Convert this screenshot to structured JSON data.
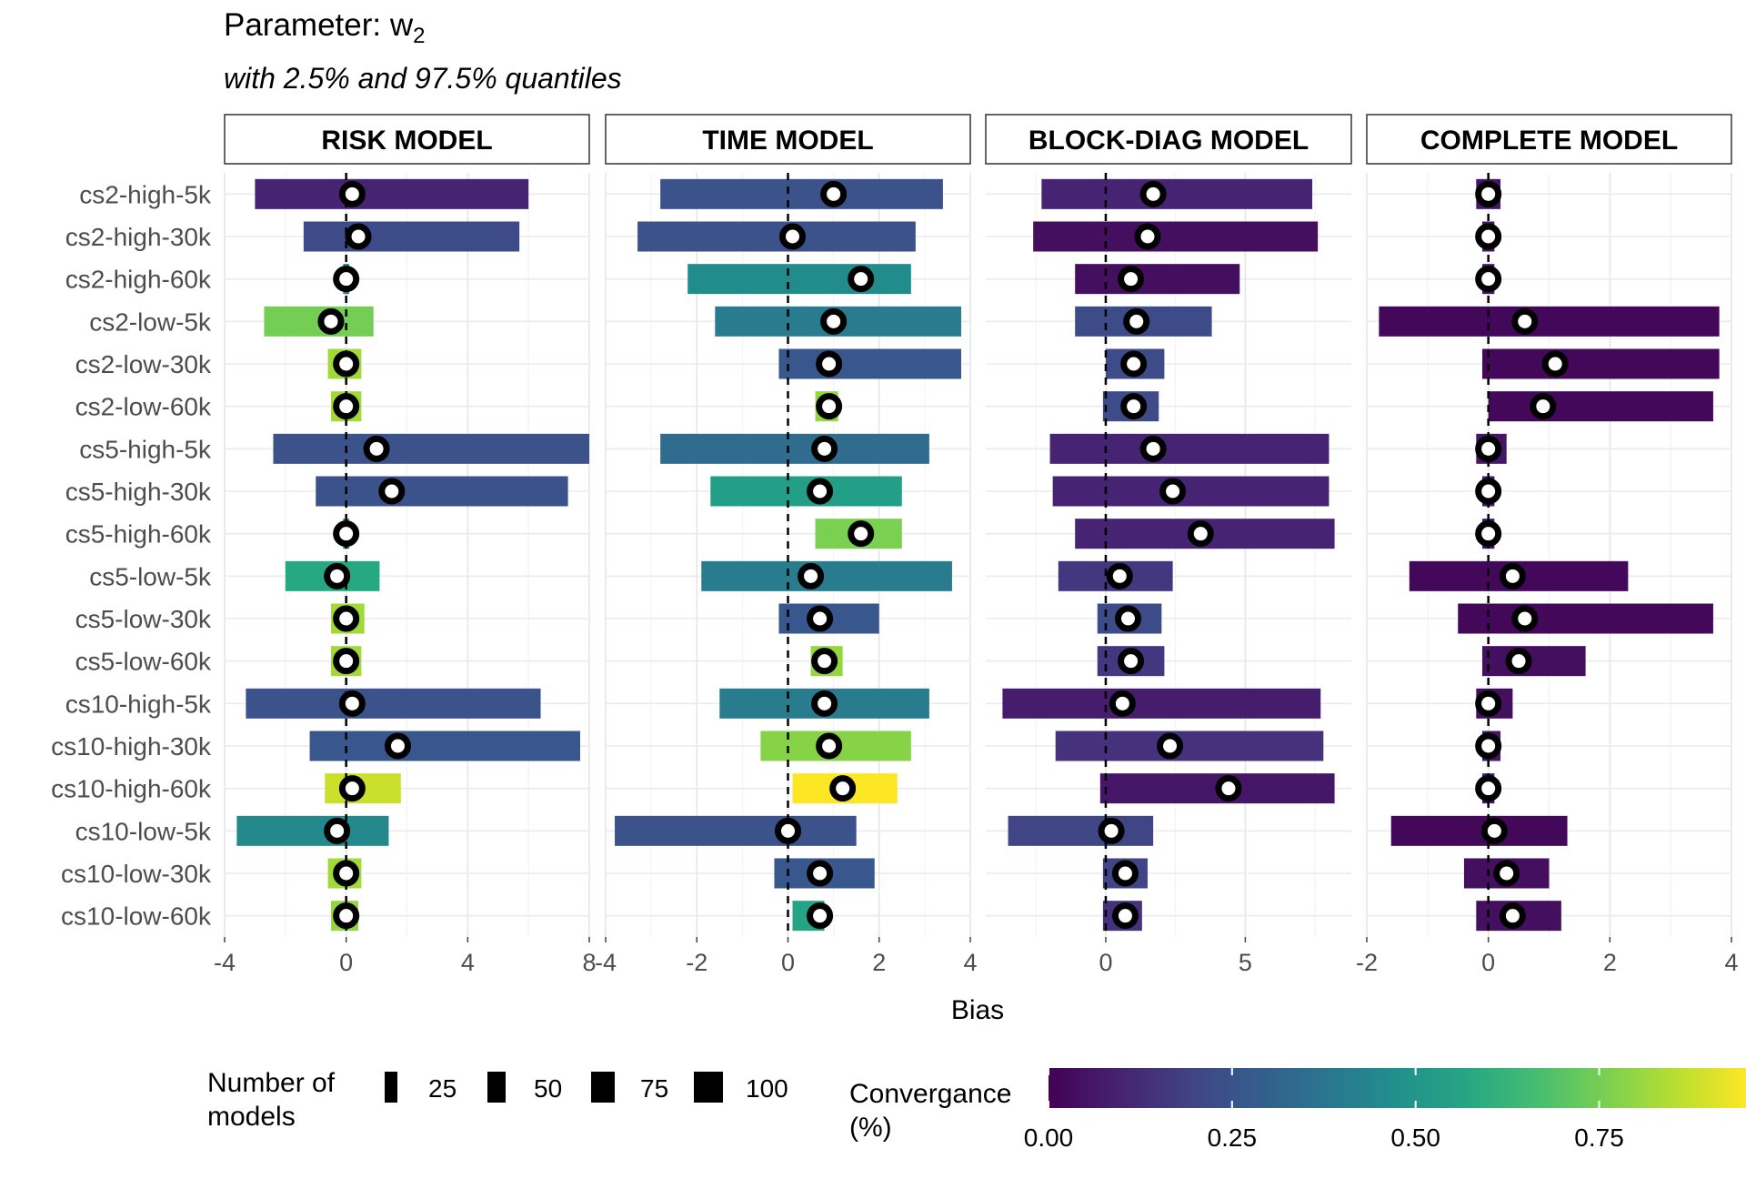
{
  "title": {
    "text": "Parameter: w",
    "subscript": "2"
  },
  "subtitle": "with 2.5% and 97.5% quantiles",
  "chart_data": {
    "type": "bar",
    "orientation": "horizontal range bars with point estimates, faceted",
    "x_label": "Bias",
    "categories": [
      "cs2-high-5k",
      "cs2-high-30k",
      "cs2-high-60k",
      "cs2-low-5k",
      "cs2-low-30k",
      "cs2-low-60k",
      "cs5-high-5k",
      "cs5-high-30k",
      "cs5-high-60k",
      "cs5-low-5k",
      "cs5-low-30k",
      "cs5-low-60k",
      "cs10-high-5k",
      "cs10-high-30k",
      "cs10-high-60k",
      "cs10-low-5k",
      "cs10-low-30k",
      "cs10-low-60k"
    ],
    "reference_line": {
      "x": 0,
      "style": "dashed"
    },
    "grid": true,
    "facets": [
      {
        "name": "RISK MODEL",
        "xlim": [
          -4,
          8
        ],
        "xticks": [
          -4,
          0,
          4,
          8
        ],
        "rows": [
          {
            "lo": -3.0,
            "hi": 6.0,
            "est": 0.2,
            "conv": 0.1
          },
          {
            "lo": -1.4,
            "hi": 5.7,
            "est": 0.4,
            "conv": 0.22
          },
          {
            "lo": -0.1,
            "hi": 0.1,
            "est": 0.0,
            "conv": 0.4
          },
          {
            "lo": -2.7,
            "hi": 0.9,
            "est": -0.5,
            "conv": 0.75
          },
          {
            "lo": -0.6,
            "hi": 0.5,
            "est": 0.0,
            "conv": 0.82
          },
          {
            "lo": -0.5,
            "hi": 0.5,
            "est": 0.0,
            "conv": 0.82
          },
          {
            "lo": -2.4,
            "hi": 8.0,
            "est": 1.0,
            "conv": 0.24
          },
          {
            "lo": -1.0,
            "hi": 7.3,
            "est": 1.5,
            "conv": 0.24
          },
          {
            "lo": -0.1,
            "hi": 0.1,
            "est": 0.0,
            "conv": 0.4
          },
          {
            "lo": -2.0,
            "hi": 1.1,
            "est": -0.3,
            "conv": 0.58
          },
          {
            "lo": -0.5,
            "hi": 0.6,
            "est": 0.0,
            "conv": 0.82
          },
          {
            "lo": -0.5,
            "hi": 0.5,
            "est": 0.0,
            "conv": 0.82
          },
          {
            "lo": -3.3,
            "hi": 6.4,
            "est": 0.2,
            "conv": 0.24
          },
          {
            "lo": -1.2,
            "hi": 7.7,
            "est": 1.7,
            "conv": 0.26
          },
          {
            "lo": -0.7,
            "hi": 1.8,
            "est": 0.2,
            "conv": 0.88
          },
          {
            "lo": -3.6,
            "hi": 1.4,
            "est": -0.3,
            "conv": 0.45
          },
          {
            "lo": -0.6,
            "hi": 0.5,
            "est": 0.0,
            "conv": 0.82
          },
          {
            "lo": -0.5,
            "hi": 0.4,
            "est": 0.0,
            "conv": 0.8
          }
        ]
      },
      {
        "name": "TIME MODEL",
        "xlim": [
          -4,
          4
        ],
        "xticks": [
          -4,
          -2,
          0,
          2,
          4
        ],
        "rows": [
          {
            "lo": -2.8,
            "hi": 3.4,
            "est": 1.0,
            "conv": 0.24
          },
          {
            "lo": -3.3,
            "hi": 2.8,
            "est": 0.1,
            "conv": 0.24
          },
          {
            "lo": -2.2,
            "hi": 2.7,
            "est": 1.6,
            "conv": 0.46
          },
          {
            "lo": -1.6,
            "hi": 3.8,
            "est": 1.0,
            "conv": 0.4
          },
          {
            "lo": -0.2,
            "hi": 3.8,
            "est": 0.9,
            "conv": 0.26
          },
          {
            "lo": 0.6,
            "hi": 1.1,
            "est": 0.9,
            "conv": 0.8
          },
          {
            "lo": -2.8,
            "hi": 3.1,
            "est": 0.8,
            "conv": 0.34
          },
          {
            "lo": -1.7,
            "hi": 2.5,
            "est": 0.7,
            "conv": 0.54
          },
          {
            "lo": 0.6,
            "hi": 2.5,
            "est": 1.6,
            "conv": 0.76
          },
          {
            "lo": -1.9,
            "hi": 3.6,
            "est": 0.5,
            "conv": 0.4
          },
          {
            "lo": -0.2,
            "hi": 2.0,
            "est": 0.7,
            "conv": 0.26
          },
          {
            "lo": 0.5,
            "hi": 1.2,
            "est": 0.8,
            "conv": 0.8
          },
          {
            "lo": -1.5,
            "hi": 3.1,
            "est": 0.8,
            "conv": 0.4
          },
          {
            "lo": -0.6,
            "hi": 2.7,
            "est": 0.9,
            "conv": 0.78
          },
          {
            "lo": 0.1,
            "hi": 2.4,
            "est": 1.2,
            "conv": 0.95
          },
          {
            "lo": -3.8,
            "hi": 1.5,
            "est": 0.0,
            "conv": 0.24
          },
          {
            "lo": -0.3,
            "hi": 1.9,
            "est": 0.7,
            "conv": 0.26
          },
          {
            "lo": 0.1,
            "hi": 0.8,
            "est": 0.7,
            "conv": 0.56
          }
        ]
      },
      {
        "name": "BLOCK-DIAG MODEL",
        "xlim": [
          -4.3,
          8.8
        ],
        "xticks": [
          0,
          5
        ],
        "rows": [
          {
            "lo": -2.3,
            "hi": 7.4,
            "est": 1.7,
            "conv": 0.1
          },
          {
            "lo": -2.6,
            "hi": 7.6,
            "est": 1.5,
            "conv": 0.04
          },
          {
            "lo": -1.1,
            "hi": 4.8,
            "est": 0.9,
            "conv": 0.04
          },
          {
            "lo": -1.1,
            "hi": 3.8,
            "est": 1.1,
            "conv": 0.22
          },
          {
            "lo": 0.0,
            "hi": 2.1,
            "est": 1.0,
            "conv": 0.22
          },
          {
            "lo": -0.1,
            "hi": 1.9,
            "est": 1.0,
            "conv": 0.22
          },
          {
            "lo": -2.0,
            "hi": 8.0,
            "est": 1.7,
            "conv": 0.1
          },
          {
            "lo": -1.9,
            "hi": 8.0,
            "est": 2.4,
            "conv": 0.1
          },
          {
            "lo": -1.1,
            "hi": 8.2,
            "est": 3.4,
            "conv": 0.1
          },
          {
            "lo": -1.7,
            "hi": 2.4,
            "est": 0.5,
            "conv": 0.16
          },
          {
            "lo": -0.3,
            "hi": 2.0,
            "est": 0.8,
            "conv": 0.22
          },
          {
            "lo": -0.3,
            "hi": 2.1,
            "est": 0.9,
            "conv": 0.16
          },
          {
            "lo": -3.7,
            "hi": 7.7,
            "est": 0.6,
            "conv": 0.08
          },
          {
            "lo": -1.8,
            "hi": 7.8,
            "est": 2.3,
            "conv": 0.14
          },
          {
            "lo": -0.2,
            "hi": 8.2,
            "est": 4.4,
            "conv": 0.06
          },
          {
            "lo": -3.5,
            "hi": 1.7,
            "est": 0.2,
            "conv": 0.2
          },
          {
            "lo": -0.1,
            "hi": 1.5,
            "est": 0.7,
            "conv": 0.2
          },
          {
            "lo": -0.1,
            "hi": 1.3,
            "est": 0.7,
            "conv": 0.14
          }
        ]
      },
      {
        "name": "COMPLETE MODEL",
        "xlim": [
          -2,
          4
        ],
        "xticks": [
          -2,
          0,
          2,
          4
        ],
        "rows": [
          {
            "lo": -0.2,
            "hi": 0.2,
            "est": 0.0,
            "conv": 0.06
          },
          {
            "lo": -0.1,
            "hi": 0.1,
            "est": 0.0,
            "conv": 0.06
          },
          {
            "lo": -0.1,
            "hi": 0.1,
            "est": 0.0,
            "conv": 0.06
          },
          {
            "lo": -1.8,
            "hi": 3.8,
            "est": 0.6,
            "conv": 0.02
          },
          {
            "lo": -0.1,
            "hi": 3.8,
            "est": 1.1,
            "conv": 0.02
          },
          {
            "lo": 0.0,
            "hi": 3.7,
            "est": 0.9,
            "conv": 0.02
          },
          {
            "lo": -0.2,
            "hi": 0.3,
            "est": 0.0,
            "conv": 0.06
          },
          {
            "lo": -0.1,
            "hi": 0.1,
            "est": 0.0,
            "conv": 0.06
          },
          {
            "lo": -0.1,
            "hi": 0.1,
            "est": 0.0,
            "conv": 0.06
          },
          {
            "lo": -1.3,
            "hi": 2.3,
            "est": 0.4,
            "conv": 0.02
          },
          {
            "lo": -0.5,
            "hi": 3.7,
            "est": 0.6,
            "conv": 0.02
          },
          {
            "lo": -0.1,
            "hi": 1.6,
            "est": 0.5,
            "conv": 0.04
          },
          {
            "lo": -0.2,
            "hi": 0.4,
            "est": 0.0,
            "conv": 0.04
          },
          {
            "lo": -0.1,
            "hi": 0.2,
            "est": 0.0,
            "conv": 0.06
          },
          {
            "lo": -0.1,
            "hi": 0.1,
            "est": 0.0,
            "conv": 0.06
          },
          {
            "lo": -1.6,
            "hi": 1.3,
            "est": 0.1,
            "conv": 0.02
          },
          {
            "lo": -0.4,
            "hi": 1.0,
            "est": 0.3,
            "conv": 0.04
          },
          {
            "lo": -0.2,
            "hi": 1.2,
            "est": 0.4,
            "conv": 0.04
          }
        ]
      }
    ],
    "size_legend": {
      "title_lines": [
        "Number of",
        "models"
      ],
      "values": [
        25,
        50,
        75,
        100
      ]
    },
    "color_legend": {
      "title_lines": [
        "Convergance",
        "(%)"
      ],
      "ticks": [
        0.0,
        0.25,
        0.5,
        0.75
      ],
      "tick_labels": [
        "0.00",
        "0.25",
        "0.50",
        "0.75"
      ],
      "range": [
        0,
        0.95
      ],
      "colormap": "viridis"
    }
  }
}
